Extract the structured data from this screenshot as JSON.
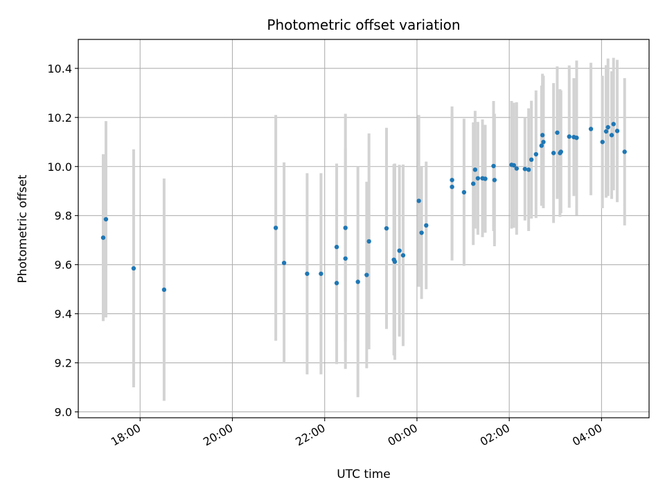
{
  "chart_data": {
    "type": "scatter",
    "title": "Photometric offset variation",
    "xlabel": "UTC time",
    "ylabel": "Photometric offset",
    "x_unit": "hours since 00:00 UTC",
    "xlim": [
      -7.34,
      5.03
    ],
    "ylim": [
      8.976,
      10.518
    ],
    "grid": true,
    "legend": "none",
    "colors": {
      "points": "#1f77b4",
      "errorbars": "#d3d3d3",
      "grid": "#b0b0b0"
    },
    "x_ticks": [
      {
        "value": -6,
        "label": "18:00"
      },
      {
        "value": -4,
        "label": "20:00"
      },
      {
        "value": -2,
        "label": "22:00"
      },
      {
        "value": 0,
        "label": "00:00"
      },
      {
        "value": 2,
        "label": "02:00"
      },
      {
        "value": 4,
        "label": "04:00"
      }
    ],
    "y_ticks": [
      {
        "value": 9.0,
        "label": "9.0"
      },
      {
        "value": 9.2,
        "label": "9.2"
      },
      {
        "value": 9.4,
        "label": "9.4"
      },
      {
        "value": 9.6,
        "label": "9.6"
      },
      {
        "value": 9.8,
        "label": "9.8"
      },
      {
        "value": 10.0,
        "label": "10.0"
      },
      {
        "value": 10.2,
        "label": "10.2"
      },
      {
        "value": 10.4,
        "label": "10.4"
      }
    ],
    "points": [
      {
        "x": -6.8,
        "y": 9.71,
        "yerr": 0.34
      },
      {
        "x": -6.74,
        "y": 9.785,
        "yerr": 0.4
      },
      {
        "x": -6.14,
        "y": 9.585,
        "yerr": 0.485
      },
      {
        "x": -5.48,
        "y": 9.498,
        "yerr": 0.453
      },
      {
        "x": 0.04,
        "y": 9.86,
        "yerr": 0.35
      },
      {
        "x": -3.06,
        "y": 9.75,
        "yerr": 0.46
      },
      {
        "x": -2.88,
        "y": 9.607,
        "yerr": 0.41
      },
      {
        "x": -2.38,
        "y": 9.563,
        "yerr": 0.41
      },
      {
        "x": -2.08,
        "y": 9.563,
        "yerr": 0.41
      },
      {
        "x": -1.74,
        "y": 9.525,
        "yerr": 0.33
      },
      {
        "x": -1.74,
        "y": 9.672,
        "yerr": 0.34
      },
      {
        "x": -1.55,
        "y": 9.75,
        "yerr": 0.465
      },
      {
        "x": -1.55,
        "y": 9.625,
        "yerr": 0.45
      },
      {
        "x": -1.28,
        "y": 9.53,
        "yerr": 0.47
      },
      {
        "x": -1.09,
        "y": 9.558,
        "yerr": 0.38
      },
      {
        "x": -1.04,
        "y": 9.695,
        "yerr": 0.44
      },
      {
        "x": -0.66,
        "y": 9.748,
        "yerr": 0.41
      },
      {
        "x": -0.5,
        "y": 9.62,
        "yerr": 0.39
      },
      {
        "x": -0.48,
        "y": 9.612,
        "yerr": 0.4
      },
      {
        "x": -0.38,
        "y": 9.657,
        "yerr": 0.35
      },
      {
        "x": -0.3,
        "y": 9.638,
        "yerr": 0.37
      },
      {
        "x": 0.1,
        "y": 9.73,
        "yerr": 0.27
      },
      {
        "x": 0.2,
        "y": 9.76,
        "yerr": 0.26
      },
      {
        "x": 0.76,
        "y": 9.945,
        "yerr": 0.3
      },
      {
        "x": 0.76,
        "y": 9.917,
        "yerr": 0.3
      },
      {
        "x": 1.02,
        "y": 9.895,
        "yerr": 0.3
      },
      {
        "x": 1.22,
        "y": 9.93,
        "yerr": 0.25
      },
      {
        "x": 1.26,
        "y": 9.987,
        "yerr": 0.24
      },
      {
        "x": 1.32,
        "y": 9.952,
        "yerr": 0.23
      },
      {
        "x": 1.42,
        "y": 9.952,
        "yerr": 0.24
      },
      {
        "x": 1.48,
        "y": 9.95,
        "yerr": 0.22
      },
      {
        "x": 1.66,
        "y": 10.002,
        "yerr": 0.265
      },
      {
        "x": 1.68,
        "y": 9.945,
        "yerr": 0.27
      },
      {
        "x": 2.05,
        "y": 10.007,
        "yerr": 0.26
      },
      {
        "x": 2.1,
        "y": 10.005,
        "yerr": 0.255
      },
      {
        "x": 2.16,
        "y": 9.992,
        "yerr": 0.27
      },
      {
        "x": 2.34,
        "y": 9.99,
        "yerr": 0.21
      },
      {
        "x": 2.42,
        "y": 9.987,
        "yerr": 0.25
      },
      {
        "x": 2.48,
        "y": 10.028,
        "yerr": 0.24
      },
      {
        "x": 2.58,
        "y": 10.05,
        "yerr": 0.26
      },
      {
        "x": 2.7,
        "y": 10.085,
        "yerr": 0.245
      },
      {
        "x": 2.72,
        "y": 10.128,
        "yerr": 0.25
      },
      {
        "x": 2.74,
        "y": 10.1,
        "yerr": 0.27
      },
      {
        "x": 2.96,
        "y": 10.055,
        "yerr": 0.285
      },
      {
        "x": 3.04,
        "y": 10.138,
        "yerr": 0.27
      },
      {
        "x": 3.1,
        "y": 10.055,
        "yerr": 0.26
      },
      {
        "x": 3.12,
        "y": 10.06,
        "yerr": 0.25
      },
      {
        "x": 3.3,
        "y": 10.122,
        "yerr": 0.29
      },
      {
        "x": 3.4,
        "y": 10.12,
        "yerr": 0.24
      },
      {
        "x": 3.46,
        "y": 10.117,
        "yerr": 0.315
      },
      {
        "x": 3.77,
        "y": 10.153,
        "yerr": 0.27
      },
      {
        "x": 4.02,
        "y": 10.1,
        "yerr": 0.27
      },
      {
        "x": 4.1,
        "y": 10.143,
        "yerr": 0.27
      },
      {
        "x": 4.14,
        "y": 10.16,
        "yerr": 0.28
      },
      {
        "x": 4.22,
        "y": 10.128,
        "yerr": 0.26
      },
      {
        "x": 4.26,
        "y": 10.173,
        "yerr": 0.27
      },
      {
        "x": 4.34,
        "y": 10.145,
        "yerr": 0.29
      },
      {
        "x": 4.5,
        "y": 10.06,
        "yerr": 0.3
      }
    ]
  }
}
